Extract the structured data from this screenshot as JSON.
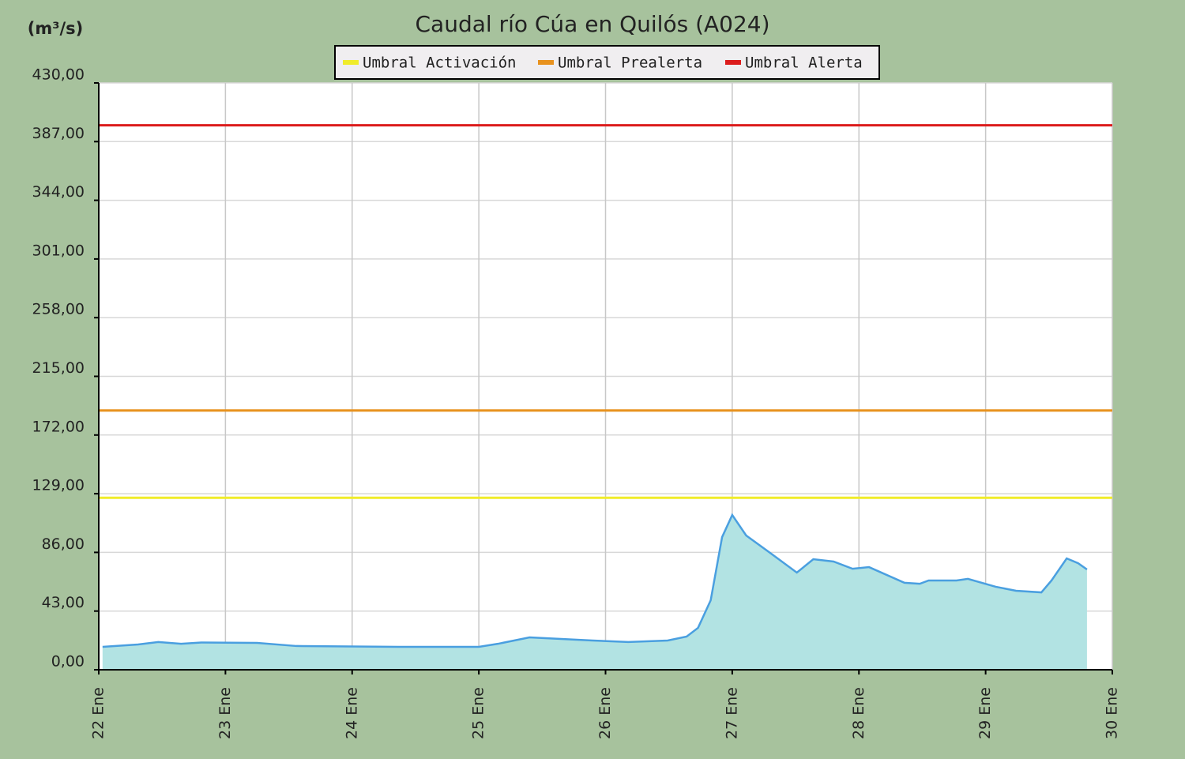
{
  "chart_data": {
    "type": "area",
    "title": "Caudal río Cúa en Quilós  (A024)",
    "ylabel": "(m³/s)",
    "x": [
      22.03,
      22.31,
      22.47,
      22.65,
      22.81,
      23.25,
      23.56,
      24.37,
      25.0,
      25.15,
      25.4,
      25.65,
      25.9,
      26.18,
      26.49,
      26.64,
      26.73,
      26.83,
      26.92,
      27.0,
      27.11,
      27.3,
      27.51,
      27.64,
      27.8,
      27.95,
      28.08,
      28.36,
      28.48,
      28.55,
      28.77,
      28.86,
      29.08,
      29.24,
      29.44,
      29.52,
      29.64,
      29.73,
      29.8
    ],
    "values": [
      16.8,
      18.5,
      20.3,
      19,
      20,
      19.7,
      17.4,
      16.8,
      16.8,
      19,
      23.7,
      22.6,
      21.4,
      20.3,
      21.4,
      24.3,
      30.7,
      50.9,
      97.2,
      113.4,
      98.4,
      85.6,
      71.2,
      81,
      79.3,
      74,
      75.2,
      63.7,
      63,
      65.4,
      65.4,
      66.6,
      60.8,
      57.9,
      56.7,
      65.4,
      81.6,
      78.1,
      73.5
    ],
    "color": "#4a9fe0",
    "fill_color": "#b2e3e3",
    "thresholds": [
      {
        "name": "Umbral Activación",
        "color": "#f0ec2a",
        "value": 126
      },
      {
        "name": "Umbral Prealerta",
        "color": "#e8921e",
        "value": 190
      },
      {
        "name": "Umbral Alerta",
        "color": "#dc1c1c",
        "value": 399
      }
    ],
    "xlim": [
      22,
      30
    ],
    "xticks": [
      {
        "value": 22,
        "label": "22 Ene"
      },
      {
        "value": 23,
        "label": "23 Ene"
      },
      {
        "value": 24,
        "label": "24 Ene"
      },
      {
        "value": 25,
        "label": "25 Ene"
      },
      {
        "value": 26,
        "label": "26 Ene"
      },
      {
        "value": 27,
        "label": "27 Ene"
      },
      {
        "value": 28,
        "label": "28 Ene"
      },
      {
        "value": 29,
        "label": "29 Ene"
      },
      {
        "value": 30,
        "label": "30 Ene"
      }
    ],
    "ylim": [
      0,
      430
    ],
    "yticks": [
      {
        "value": 0,
        "label": "0,00"
      },
      {
        "value": 43,
        "label": "43,00"
      },
      {
        "value": 86,
        "label": "86,00"
      },
      {
        "value": 129,
        "label": "129,00"
      },
      {
        "value": 172,
        "label": "172,00"
      },
      {
        "value": 215,
        "label": "215,00"
      },
      {
        "value": 258,
        "label": "258,00"
      },
      {
        "value": 301,
        "label": "301,00"
      },
      {
        "value": 344,
        "label": "344,00"
      },
      {
        "value": 387,
        "label": "387,00"
      },
      {
        "value": 430,
        "label": "430,00"
      }
    ],
    "grid": true
  }
}
